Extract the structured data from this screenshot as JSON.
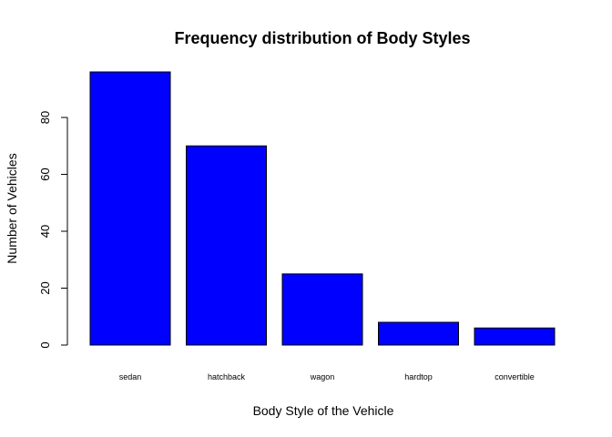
{
  "chart_data": {
    "type": "bar",
    "title": "Frequency distribution of Body Styles",
    "xlabel": "Body Style of the Vehicle",
    "ylabel": "Number of Vehicles",
    "categories": [
      "sedan",
      "hatchback",
      "wagon",
      "hardtop",
      "convertible"
    ],
    "values": [
      96,
      70,
      25,
      8,
      6
    ],
    "ylim": [
      0,
      100
    ],
    "yticks": [
      0,
      20,
      40,
      60,
      80
    ],
    "bar_color": "#0000ff",
    "bar_edge_color": "#000000",
    "grid": false,
    "legend": "none"
  }
}
